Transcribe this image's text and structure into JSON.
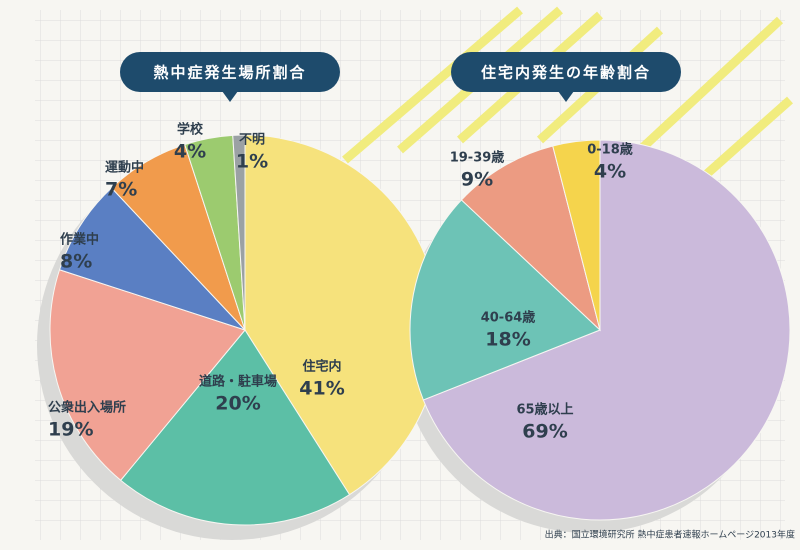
{
  "chart_data": [
    {
      "type": "pie",
      "title": "熱中症発生場所割合",
      "categories": [
        "住宅内",
        "道路・駐車場",
        "公衆出入場所",
        "作業中",
        "運動中",
        "学校",
        "不明"
      ],
      "values": [
        41,
        20,
        19,
        8,
        7,
        4,
        1
      ],
      "value_labels": [
        "41%",
        "20%",
        "19%",
        "8%",
        "7%",
        "4%",
        "1%"
      ],
      "colors": [
        "#f6e27c",
        "#5cbfa6",
        "#f1a294",
        "#5a7fc3",
        "#f19b4c",
        "#9ccb6f",
        "#9ba1a4"
      ]
    },
    {
      "type": "pie",
      "title": "住宅内発生の年齢割合",
      "categories": [
        "65歳以上",
        "40-64歳",
        "19-39歳",
        "0-18歳"
      ],
      "values": [
        69,
        18,
        9,
        4
      ],
      "value_labels": [
        "69%",
        "18%",
        "9%",
        "4%"
      ],
      "colors": [
        "#cbbadb",
        "#6dc3b6",
        "#ec9b82",
        "#f5d44c"
      ]
    }
  ],
  "source": "出典：国立環境研究所 熱中症患者速報ホームページ2013年度"
}
